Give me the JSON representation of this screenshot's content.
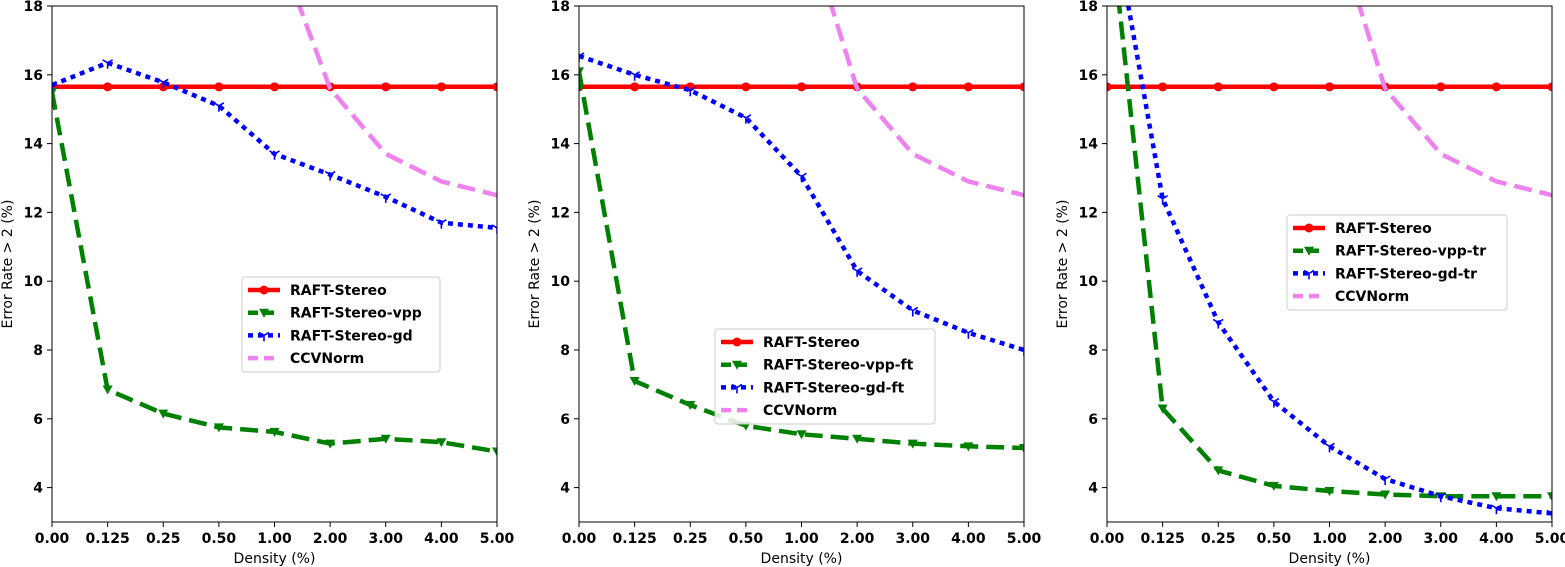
{
  "chart_data": [
    {
      "type": "line",
      "xlabel": "Density (%)",
      "ylabel": "Error Rate > 2 (%)",
      "categories": [
        "0.00",
        "0.125",
        "0.25",
        "0.50",
        "1.00",
        "2.00",
        "3.00",
        "4.00",
        "5.00"
      ],
      "ylim": [
        3,
        18
      ],
      "yticks": [
        4,
        6,
        8,
        10,
        12,
        14,
        16,
        18
      ],
      "legend_position": "center-right",
      "series": [
        {
          "name": "RAFT-Stereo",
          "color": "#ff0000",
          "style": "solid",
          "marker": "circle",
          "x": [
            0,
            1,
            2,
            3,
            4,
            5,
            6,
            7,
            8
          ],
          "values": [
            15.65,
            15.65,
            15.65,
            15.65,
            15.65,
            15.65,
            15.65,
            15.65,
            15.65
          ]
        },
        {
          "name": "RAFT-Stereo-vpp",
          "color": "#008000",
          "style": "dashed",
          "marker": "triangle-down",
          "x": [
            0,
            1,
            2,
            3,
            4,
            5,
            6,
            7,
            8
          ],
          "values": [
            15.5,
            6.85,
            6.15,
            5.75,
            5.62,
            5.28,
            5.42,
            5.32,
            5.05
          ]
        },
        {
          "name": "RAFT-Stereo-gd",
          "color": "#0000ff",
          "style": "dotted",
          "marker": "tri-down",
          "x": [
            0,
            1,
            2,
            3,
            4,
            5,
            6,
            7,
            8
          ],
          "values": [
            15.7,
            16.35,
            15.78,
            15.1,
            13.7,
            13.1,
            12.45,
            11.7,
            11.55
          ]
        },
        {
          "name": "CCVNorm",
          "color": "#ee82ee",
          "style": "dashed",
          "marker": "none",
          "x": [
            4.4,
            5,
            6,
            7,
            8
          ],
          "values": [
            18.2,
            15.6,
            13.7,
            12.9,
            12.5
          ]
        }
      ]
    },
    {
      "type": "line",
      "xlabel": "Density (%)",
      "ylabel": "Error Rate > 2 (%)",
      "categories": [
        "0.00",
        "0.125",
        "0.25",
        "0.50",
        "1.00",
        "2.00",
        "3.00",
        "4.00",
        "5.00"
      ],
      "ylim": [
        3,
        18
      ],
      "yticks": [
        4,
        6,
        8,
        10,
        12,
        14,
        16,
        18
      ],
      "legend_position": "lower-center",
      "series": [
        {
          "name": "RAFT-Stereo",
          "color": "#ff0000",
          "style": "solid",
          "marker": "circle",
          "x": [
            0,
            1,
            2,
            3,
            4,
            5,
            6,
            7,
            8
          ],
          "values": [
            15.65,
            15.65,
            15.65,
            15.65,
            15.65,
            15.65,
            15.65,
            15.65,
            15.65
          ]
        },
        {
          "name": "RAFT-Stereo-vpp-ft",
          "color": "#008000",
          "style": "dashed",
          "marker": "triangle-down",
          "x": [
            0,
            1,
            2,
            3,
            4,
            5,
            6,
            7,
            8
          ],
          "values": [
            16.1,
            7.1,
            6.4,
            5.8,
            5.55,
            5.42,
            5.28,
            5.2,
            5.15
          ]
        },
        {
          "name": "RAFT-Stereo-gd-ft",
          "color": "#0000ff",
          "style": "dotted",
          "marker": "tri-down",
          "x": [
            0,
            1,
            2,
            3,
            4,
            5,
            6,
            7,
            8
          ],
          "values": [
            16.55,
            16.0,
            15.55,
            14.75,
            13.05,
            10.3,
            9.15,
            8.5,
            8.0
          ]
        },
        {
          "name": "CCVNorm",
          "color": "#ee82ee",
          "style": "dashed",
          "marker": "none",
          "x": [
            4.5,
            5,
            6,
            7,
            8
          ],
          "values": [
            18.2,
            15.6,
            13.7,
            12.9,
            12.5
          ]
        }
      ]
    },
    {
      "type": "line",
      "xlabel": "Density (%)",
      "ylabel": "Error Rate > 2 (%)",
      "categories": [
        "0.00",
        "0.125",
        "0.25",
        "0.50",
        "1.00",
        "2.00",
        "3.00",
        "4.00",
        "5.00"
      ],
      "ylim": [
        3,
        18
      ],
      "yticks": [
        4,
        6,
        8,
        10,
        12,
        14,
        16,
        18
      ],
      "legend_position": "center-right",
      "series": [
        {
          "name": "RAFT-Stereo",
          "color": "#ff0000",
          "style": "solid",
          "marker": "circle",
          "x": [
            0,
            1,
            2,
            3,
            4,
            5,
            6,
            7,
            8
          ],
          "values": [
            15.65,
            15.65,
            15.65,
            15.65,
            15.65,
            15.65,
            15.65,
            15.65,
            15.65
          ]
        },
        {
          "name": "RAFT-Stereo-vpp-tr",
          "color": "#008000",
          "style": "dashed",
          "marker": "triangle-down",
          "x": [
            0.2,
            1,
            2,
            3,
            4,
            5,
            6,
            7,
            8
          ],
          "values": [
            18.3,
            6.3,
            4.5,
            4.05,
            3.9,
            3.8,
            3.75,
            3.75,
            3.75
          ]
        },
        {
          "name": "RAFT-Stereo-gd-tr",
          "color": "#0000ff",
          "style": "dotted",
          "marker": "tri-down",
          "x": [
            0.35,
            1,
            2,
            3,
            4,
            5,
            6,
            7,
            8
          ],
          "values": [
            18.3,
            12.4,
            8.8,
            6.5,
            5.2,
            4.25,
            3.75,
            3.4,
            3.25
          ]
        },
        {
          "name": "CCVNorm",
          "color": "#ee82ee",
          "style": "dashed",
          "marker": "none",
          "x": [
            4.5,
            5,
            6,
            7,
            8
          ],
          "values": [
            18.2,
            15.6,
            13.7,
            12.9,
            12.5
          ]
        }
      ]
    }
  ]
}
